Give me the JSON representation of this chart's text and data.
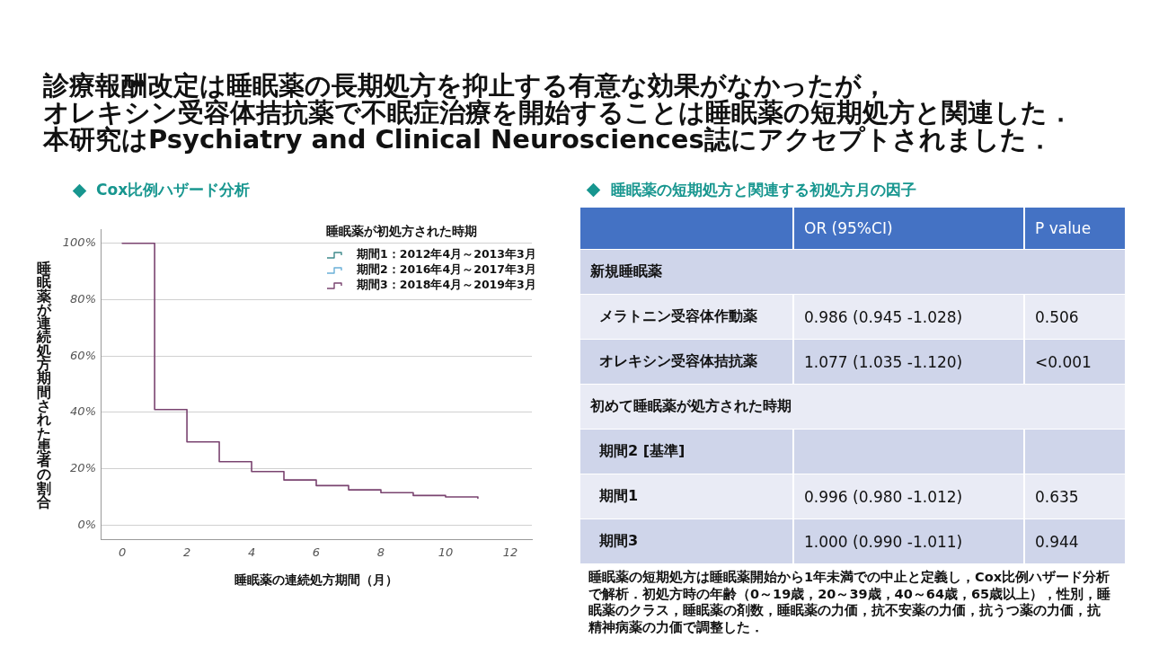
{
  "chart_data": [
    {
      "type": "other",
      "title": "診療報酬改定は睡眠薬の長期処方を抑止する有意な効果がなかったが，オレキシン受容体拮抗薬で不眠症治療を開始することは睡眠薬の短期処方と関連した．",
      "subtitle": "本研究はPsychiatry and Clinical Neurosciences誌にアクセプトされました．"
    },
    {
      "type": "step",
      "title": "Cox比例ハザード分析",
      "xlabel": "睡眠薬の連続処方期間（月）",
      "ylabel": "睡眠薬が連続処方期間された患者の割合",
      "legend_title": "睡眠薬が初処方された時期",
      "x": [
        0,
        1,
        2,
        3,
        4,
        5,
        6,
        7,
        8,
        9,
        10,
        11
      ],
      "series": [
        {
          "name": "期間1：2012年4月～2013年3月",
          "color": "#3f8a8c",
          "values": [
            null,
            null,
            null,
            null,
            null,
            null,
            null,
            null,
            null,
            null,
            null,
            null
          ]
        },
        {
          "name": "期間2：2016年4月～2017年3月",
          "color": "#6ab0d8",
          "values": [
            null,
            null,
            null,
            null,
            null,
            null,
            null,
            null,
            null,
            null,
            null,
            null
          ]
        },
        {
          "name": "期間3：2018年4月～2019年3月",
          "color": "#7a4470",
          "values": [
            100,
            41,
            29.5,
            22.5,
            19,
            16,
            14,
            12.5,
            11.5,
            10.5,
            10,
            9.5
          ]
        }
      ],
      "xlim": [
        -0.67,
        12.67
      ],
      "xticks": [
        0,
        2,
        4,
        6,
        8,
        10,
        12
      ],
      "ylim": [
        -5,
        105
      ],
      "yticks": [
        {
          "value": 0,
          "label": "0%"
        },
        {
          "value": 20,
          "label": "20%"
        },
        {
          "value": 40,
          "label": "40%"
        },
        {
          "value": 60,
          "label": "60%"
        },
        {
          "value": 80,
          "label": "80%"
        },
        {
          "value": 100,
          "label": "100%"
        }
      ],
      "grid": "y",
      "legend": "top right",
      "marker": "none",
      "line_style": "solid"
    },
    {
      "type": "other",
      "title": "睡眠薬の短期処方と関連する初処方月の因子",
      "categories": [
        "OR (95%CI)",
        "P value"
      ],
      "y_categories": [
        "新規睡眠薬",
        "メラトニン受容体作動薬",
        "オレキシン受容体拮抗薬",
        "初めて睡眠薬が処方された時期",
        "期間2 [基準]",
        "期間1",
        "期間3"
      ],
      "cell_labels": [
        null,
        [
          "0.986 (0.945 -1.028)",
          "0.506"
        ],
        [
          "1.077 (1.035 -1.120)",
          "<0.001"
        ],
        null,
        [
          null,
          null
        ],
        [
          "0.996 (0.980 -1.012)",
          "0.635"
        ],
        [
          "1.000 (0.990 -1.011)",
          "0.944"
        ]
      ],
      "annotations": [
        "睡眠薬の短期処方は睡眠薬開始から1年未満での中止と定義し，Cox比例ハザード分析で解析．初処方時の年齢（0～19歳，20～39歳，40～64歳，65歳以上），性別，睡眠薬のクラス，睡眠薬の剤数，睡眠薬の力価，抗不安薬の力価，抗うつ薬の力価，抗精神病薬の力価で調整した．"
      ]
    }
  ]
}
